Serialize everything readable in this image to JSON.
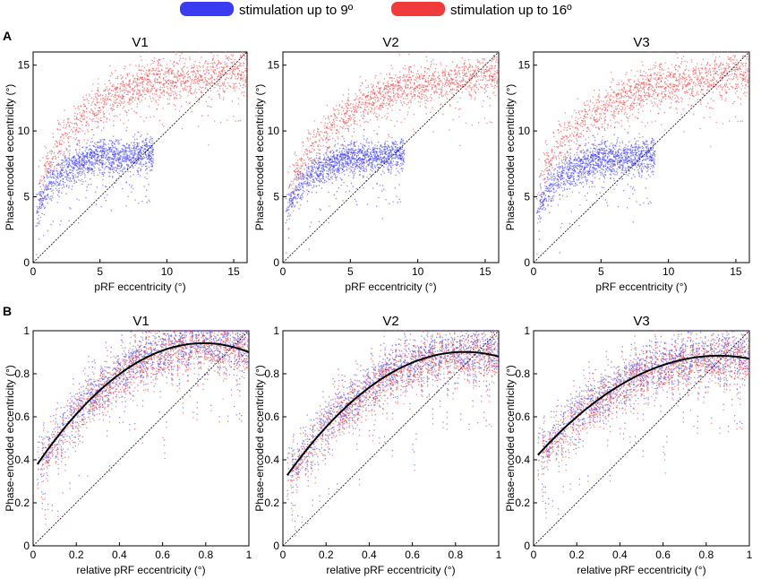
{
  "legend": {
    "items": [
      {
        "label": "stimulation up to 9º",
        "color": "#3b3bf0"
      },
      {
        "label": "stimulation up to 16º",
        "color": "#ef3b3b"
      }
    ]
  },
  "rows": [
    {
      "label": "A"
    },
    {
      "label": "B"
    }
  ],
  "chart_data": [
    {
      "type": "scatter",
      "row": "A",
      "title": "V1",
      "xlabel": "pRF eccentricity (°)",
      "ylabel": "Phase-encoded eccentricity (°)",
      "xlim": [
        0,
        16
      ],
      "ylim": [
        0,
        16
      ],
      "xticks": [
        0,
        5,
        10,
        15
      ],
      "yticks": [
        0,
        5,
        10,
        15
      ],
      "diagonal": true,
      "series": [
        {
          "name": "stimulation up to 9º",
          "color": "#3b3bf0",
          "curve": {
            "xmax": 9,
            "y0": 3.3,
            "yinf": 8.3,
            "k": 0.55
          },
          "spread": 0.9
        },
        {
          "name": "stimulation up to 16º",
          "color": "#ef3b3b",
          "curve": {
            "xmax": 16,
            "y0": 5.2,
            "yinf": 14.6,
            "k": 0.26
          },
          "spread": 1.1
        }
      ]
    },
    {
      "type": "scatter",
      "row": "A",
      "title": "V2",
      "xlabel": "pRF eccentricity (°)",
      "ylabel": "Phase-encoded eccentricity (°)",
      "xlim": [
        0,
        16
      ],
      "ylim": [
        0,
        16
      ],
      "xticks": [
        0,
        5,
        10,
        15
      ],
      "yticks": [
        0,
        5,
        10,
        15
      ],
      "diagonal": true,
      "series": [
        {
          "name": "stimulation up to 9º",
          "color": "#3b3bf0",
          "curve": {
            "xmax": 9,
            "y0": 3.5,
            "yinf": 8.3,
            "k": 0.5
          },
          "spread": 0.8
        },
        {
          "name": "stimulation up to 16º",
          "color": "#ef3b3b",
          "curve": {
            "xmax": 16,
            "y0": 5.0,
            "yinf": 14.6,
            "k": 0.22
          },
          "spread": 1.0
        }
      ]
    },
    {
      "type": "scatter",
      "row": "A",
      "title": "V3",
      "xlabel": "pRF eccentricity (°)",
      "ylabel": "Phase-encoded eccentricity (°)",
      "xlim": [
        0,
        16
      ],
      "ylim": [
        0,
        16
      ],
      "xticks": [
        0,
        5,
        10,
        15
      ],
      "yticks": [
        0,
        5,
        10,
        15
      ],
      "diagonal": true,
      "series": [
        {
          "name": "stimulation up to 9º",
          "color": "#3b3bf0",
          "curve": {
            "xmax": 9,
            "y0": 3.4,
            "yinf": 8.2,
            "k": 0.5
          },
          "spread": 0.9
        },
        {
          "name": "stimulation up to 16º",
          "color": "#ef3b3b",
          "curve": {
            "xmax": 16,
            "y0": 6.0,
            "yinf": 14.8,
            "k": 0.2
          },
          "spread": 1.1
        }
      ]
    },
    {
      "type": "scatter",
      "row": "B",
      "title": "V1",
      "xlabel": "relative pRF eccentricity (°)",
      "ylabel": "Phase-encoded eccentricity (°)",
      "xlim": [
        0,
        1
      ],
      "ylim": [
        0,
        1
      ],
      "xticks": [
        0,
        0.2,
        0.4,
        0.6,
        0.8,
        1
      ],
      "yticks": [
        0,
        0.2,
        0.4,
        0.6,
        0.8,
        1
      ],
      "diagonal": true,
      "fit": {
        "a": -0.95,
        "b": 1.5,
        "c": 0.35,
        "x_range": [
          0.02,
          1.0
        ],
        "color": "#000000"
      },
      "series": [
        {
          "name": "stimulation up to 9º",
          "color": "#3b3bf0",
          "spread": 0.07
        },
        {
          "name": "stimulation up to 16º",
          "color": "#ef3b3b",
          "spread": 0.07
        }
      ]
    },
    {
      "type": "scatter",
      "row": "B",
      "title": "V2",
      "xlabel": "relative pRF eccentricity (°)",
      "ylabel": "Phase-encoded eccentricity (°)",
      "xlim": [
        0,
        1
      ],
      "ylim": [
        0,
        1
      ],
      "xticks": [
        0,
        0.2,
        0.4,
        0.6,
        0.8,
        1
      ],
      "yticks": [
        0,
        0.2,
        0.4,
        0.6,
        0.8,
        1
      ],
      "diagonal": true,
      "fit": {
        "a": -0.85,
        "b": 1.43,
        "c": 0.3,
        "x_range": [
          0.02,
          1.0
        ],
        "color": "#000000"
      },
      "series": [
        {
          "name": "stimulation up to 9º",
          "color": "#3b3bf0",
          "spread": 0.07
        },
        {
          "name": "stimulation up to 16º",
          "color": "#ef3b3b",
          "spread": 0.07
        }
      ]
    },
    {
      "type": "scatter",
      "row": "B",
      "title": "V3",
      "xlabel": "relative pRF eccentricity (°)",
      "ylabel": "Phase-encoded eccentricity (°)",
      "xlim": [
        0,
        1
      ],
      "ylim": [
        0,
        1
      ],
      "xticks": [
        0,
        0.2,
        0.4,
        0.6,
        0.8,
        1
      ],
      "yticks": [
        0,
        0.2,
        0.4,
        0.6,
        0.8,
        1
      ],
      "diagonal": true,
      "fit": {
        "a": -0.66,
        "b": 1.13,
        "c": 0.4,
        "x_range": [
          0.02,
          1.0
        ],
        "color": "#000000"
      },
      "series": [
        {
          "name": "stimulation up to 9º",
          "color": "#3b3bf0",
          "spread": 0.07
        },
        {
          "name": "stimulation up to 16º",
          "color": "#ef3b3b",
          "spread": 0.07
        }
      ]
    }
  ]
}
